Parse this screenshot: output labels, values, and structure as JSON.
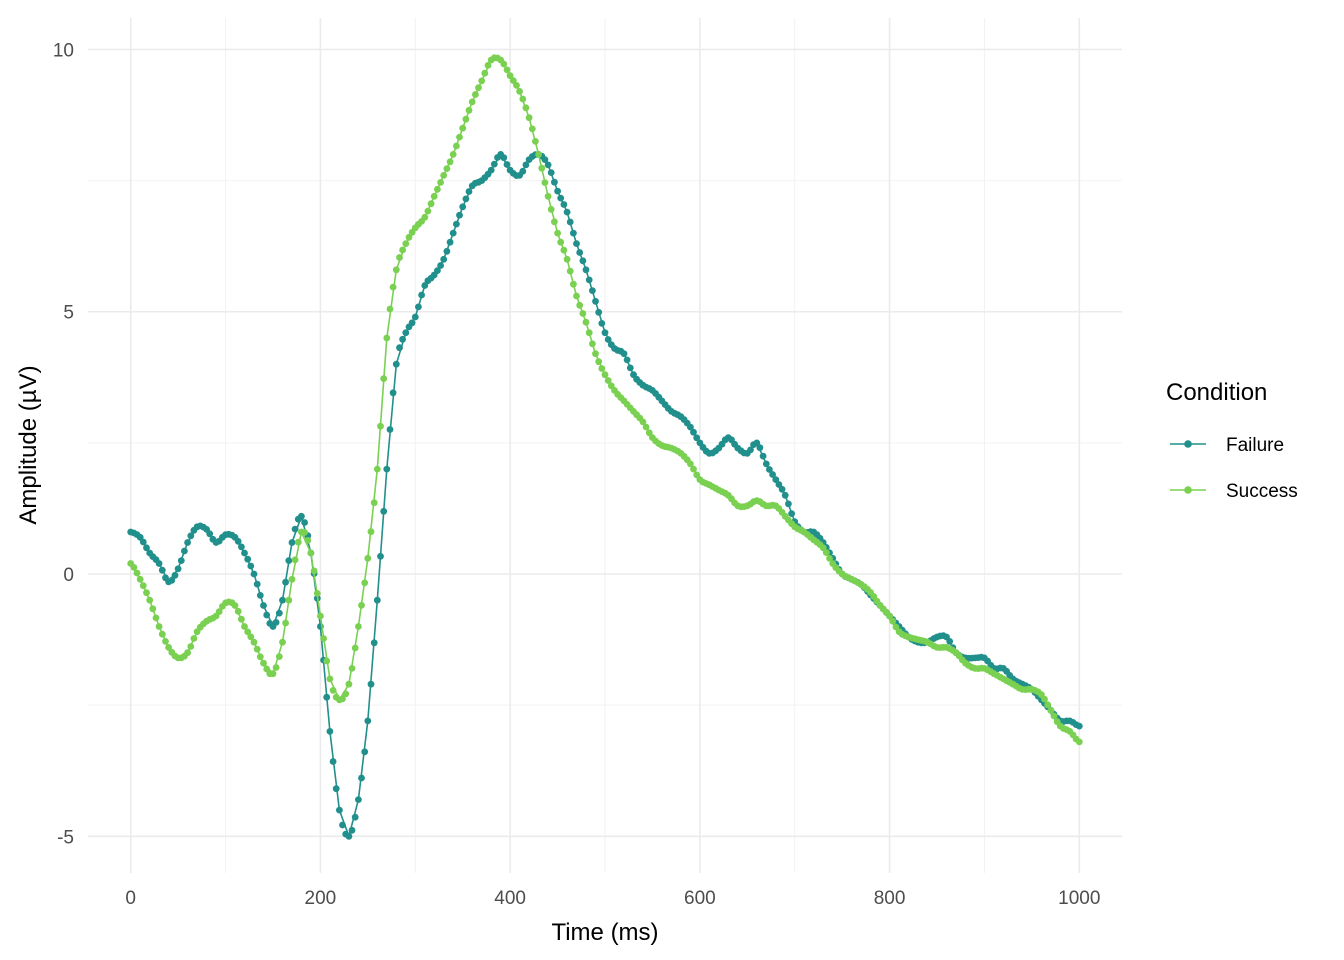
{
  "chart_data": {
    "type": "line",
    "title": "",
    "xlabel": "Time (ms)",
    "ylabel": "Amplitude (µV)",
    "xlim": [
      -45,
      1045
    ],
    "ylim": [
      -5.7,
      10.6
    ],
    "x_ticks": [
      0,
      200,
      400,
      600,
      800,
      1000
    ],
    "x_tick_labels": [
      "0",
      "200",
      "400",
      "600",
      "800",
      "1000"
    ],
    "y_ticks": [
      -5,
      0,
      5,
      10
    ],
    "y_tick_labels": [
      "-5",
      "0",
      "5",
      "10"
    ],
    "grid": true,
    "legend_position": "right",
    "legend_title": "Condition",
    "series": [
      {
        "name": "Failure",
        "color": "#21908c",
        "points": [
          [
            0,
            0.8
          ],
          [
            10,
            0.7
          ],
          [
            20,
            0.4
          ],
          [
            30,
            0.2
          ],
          [
            40,
            -0.15
          ],
          [
            50,
            0.1
          ],
          [
            60,
            0.6
          ],
          [
            70,
            0.9
          ],
          [
            80,
            0.85
          ],
          [
            90,
            0.6
          ],
          [
            100,
            0.75
          ],
          [
            110,
            0.7
          ],
          [
            120,
            0.4
          ],
          [
            130,
            0.0
          ],
          [
            140,
            -0.6
          ],
          [
            150,
            -1.0
          ],
          [
            160,
            -0.5
          ],
          [
            170,
            0.6
          ],
          [
            180,
            1.1
          ],
          [
            190,
            0.4
          ],
          [
            200,
            -1.0
          ],
          [
            210,
            -3.0
          ],
          [
            220,
            -4.5
          ],
          [
            230,
            -5.0
          ],
          [
            240,
            -4.3
          ],
          [
            250,
            -2.8
          ],
          [
            260,
            -0.5
          ],
          [
            270,
            2.0
          ],
          [
            280,
            4.0
          ],
          [
            290,
            4.6
          ],
          [
            300,
            4.9
          ],
          [
            310,
            5.5
          ],
          [
            320,
            5.7
          ],
          [
            330,
            6.0
          ],
          [
            340,
            6.5
          ],
          [
            350,
            7.0
          ],
          [
            360,
            7.4
          ],
          [
            370,
            7.5
          ],
          [
            380,
            7.7
          ],
          [
            390,
            8.0
          ],
          [
            400,
            7.7
          ],
          [
            410,
            7.6
          ],
          [
            420,
            7.9
          ],
          [
            430,
            8.0
          ],
          [
            440,
            7.8
          ],
          [
            450,
            7.3
          ],
          [
            460,
            6.9
          ],
          [
            470,
            6.3
          ],
          [
            480,
            5.8
          ],
          [
            490,
            5.2
          ],
          [
            500,
            4.6
          ],
          [
            510,
            4.3
          ],
          [
            520,
            4.2
          ],
          [
            530,
            3.8
          ],
          [
            540,
            3.6
          ],
          [
            550,
            3.5
          ],
          [
            560,
            3.3
          ],
          [
            570,
            3.1
          ],
          [
            580,
            3.0
          ],
          [
            590,
            2.8
          ],
          [
            600,
            2.5
          ],
          [
            610,
            2.3
          ],
          [
            620,
            2.4
          ],
          [
            630,
            2.6
          ],
          [
            640,
            2.4
          ],
          [
            650,
            2.3
          ],
          [
            660,
            2.5
          ],
          [
            670,
            2.1
          ],
          [
            680,
            1.8
          ],
          [
            690,
            1.5
          ],
          [
            700,
            1.0
          ],
          [
            710,
            0.8
          ],
          [
            720,
            0.8
          ],
          [
            730,
            0.6
          ],
          [
            740,
            0.3
          ],
          [
            750,
            0.0
          ],
          [
            760,
            -0.1
          ],
          [
            770,
            -0.2
          ],
          [
            780,
            -0.4
          ],
          [
            790,
            -0.6
          ],
          [
            800,
            -0.8
          ],
          [
            810,
            -1.0
          ],
          [
            820,
            -1.2
          ],
          [
            830,
            -1.3
          ],
          [
            840,
            -1.3
          ],
          [
            850,
            -1.2
          ],
          [
            860,
            -1.2
          ],
          [
            870,
            -1.5
          ],
          [
            880,
            -1.6
          ],
          [
            890,
            -1.6
          ],
          [
            900,
            -1.6
          ],
          [
            910,
            -1.8
          ],
          [
            920,
            -1.8
          ],
          [
            930,
            -2.0
          ],
          [
            940,
            -2.1
          ],
          [
            950,
            -2.2
          ],
          [
            960,
            -2.4
          ],
          [
            970,
            -2.6
          ],
          [
            980,
            -2.8
          ],
          [
            990,
            -2.8
          ],
          [
            1000,
            -2.9
          ]
        ]
      },
      {
        "name": "Success",
        "color": "#7ad151",
        "points": [
          [
            0,
            0.2
          ],
          [
            10,
            -0.1
          ],
          [
            20,
            -0.5
          ],
          [
            30,
            -1.0
          ],
          [
            40,
            -1.4
          ],
          [
            50,
            -1.6
          ],
          [
            60,
            -1.5
          ],
          [
            70,
            -1.1
          ],
          [
            80,
            -0.9
          ],
          [
            90,
            -0.8
          ],
          [
            100,
            -0.55
          ],
          [
            110,
            -0.6
          ],
          [
            120,
            -1.0
          ],
          [
            130,
            -1.3
          ],
          [
            140,
            -1.7
          ],
          [
            150,
            -1.9
          ],
          [
            160,
            -1.3
          ],
          [
            170,
            -0.1
          ],
          [
            180,
            0.8
          ],
          [
            190,
            0.4
          ],
          [
            200,
            -0.8
          ],
          [
            210,
            -2.0
          ],
          [
            220,
            -2.4
          ],
          [
            230,
            -2.1
          ],
          [
            240,
            -1.0
          ],
          [
            250,
            0.3
          ],
          [
            260,
            2.0
          ],
          [
            270,
            4.5
          ],
          [
            280,
            5.8
          ],
          [
            290,
            6.3
          ],
          [
            300,
            6.6
          ],
          [
            310,
            6.8
          ],
          [
            320,
            7.2
          ],
          [
            330,
            7.6
          ],
          [
            340,
            8.0
          ],
          [
            350,
            8.5
          ],
          [
            360,
            9.0
          ],
          [
            370,
            9.4
          ],
          [
            380,
            9.8
          ],
          [
            390,
            9.8
          ],
          [
            400,
            9.5
          ],
          [
            410,
            9.2
          ],
          [
            420,
            8.7
          ],
          [
            430,
            8.0
          ],
          [
            440,
            7.2
          ],
          [
            450,
            6.5
          ],
          [
            460,
            6.0
          ],
          [
            470,
            5.3
          ],
          [
            480,
            4.8
          ],
          [
            490,
            4.2
          ],
          [
            500,
            3.8
          ],
          [
            510,
            3.5
          ],
          [
            520,
            3.3
          ],
          [
            530,
            3.1
          ],
          [
            540,
            2.9
          ],
          [
            550,
            2.6
          ],
          [
            560,
            2.45
          ],
          [
            570,
            2.4
          ],
          [
            580,
            2.3
          ],
          [
            590,
            2.1
          ],
          [
            600,
            1.8
          ],
          [
            610,
            1.7
          ],
          [
            620,
            1.6
          ],
          [
            630,
            1.5
          ],
          [
            640,
            1.3
          ],
          [
            650,
            1.3
          ],
          [
            660,
            1.4
          ],
          [
            670,
            1.3
          ],
          [
            680,
            1.3
          ],
          [
            690,
            1.1
          ],
          [
            700,
            0.9
          ],
          [
            710,
            0.8
          ],
          [
            720,
            0.65
          ],
          [
            730,
            0.5
          ],
          [
            740,
            0.2
          ],
          [
            750,
            0.0
          ],
          [
            760,
            -0.1
          ],
          [
            770,
            -0.2
          ],
          [
            780,
            -0.35
          ],
          [
            790,
            -0.6
          ],
          [
            800,
            -0.8
          ],
          [
            810,
            -1.1
          ],
          [
            820,
            -1.2
          ],
          [
            830,
            -1.25
          ],
          [
            840,
            -1.3
          ],
          [
            850,
            -1.4
          ],
          [
            860,
            -1.4
          ],
          [
            870,
            -1.5
          ],
          [
            880,
            -1.7
          ],
          [
            890,
            -1.8
          ],
          [
            900,
            -1.8
          ],
          [
            910,
            -1.9
          ],
          [
            920,
            -2.0
          ],
          [
            930,
            -2.1
          ],
          [
            940,
            -2.2
          ],
          [
            950,
            -2.2
          ],
          [
            960,
            -2.3
          ],
          [
            970,
            -2.6
          ],
          [
            980,
            -2.9
          ],
          [
            990,
            -3.0
          ],
          [
            1000,
            -3.2
          ]
        ]
      }
    ]
  }
}
